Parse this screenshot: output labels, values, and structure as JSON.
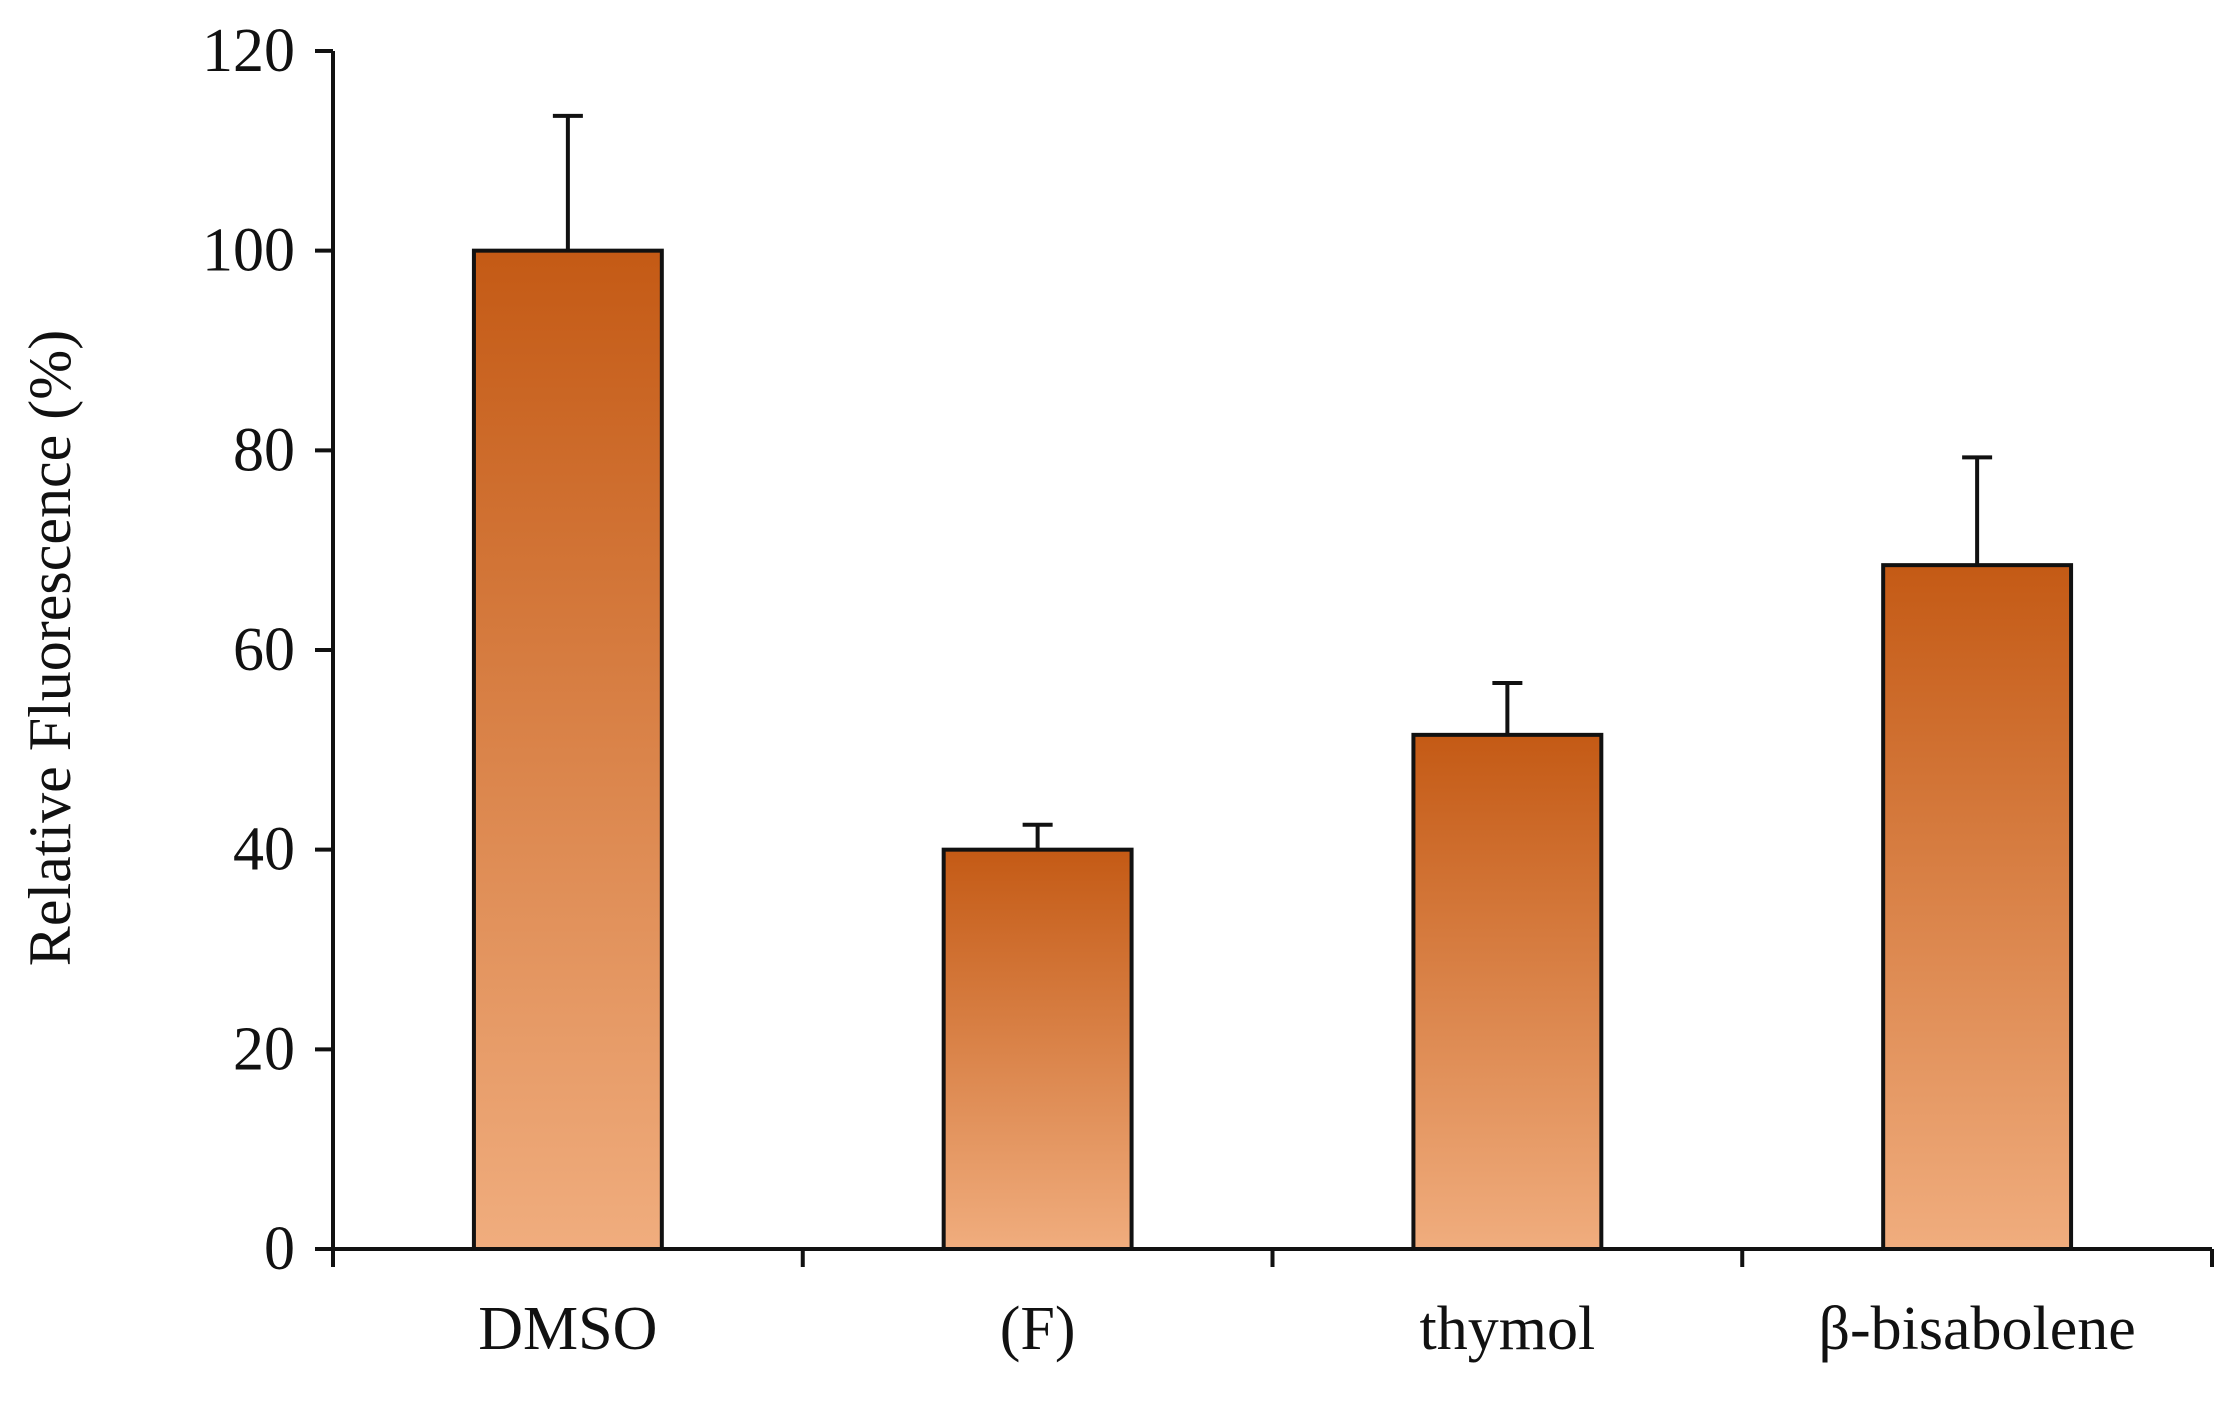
{
  "chart_data": {
    "type": "bar",
    "title": "",
    "xlabel": "",
    "ylabel": "Relative Fluorescence (%)",
    "categories": [
      "DMSO",
      "(F)",
      "thymol",
      "β-bisabolene"
    ],
    "values": [
      100,
      40,
      51.5,
      68.5
    ],
    "error_upper": [
      13.5,
      2.5,
      5.2,
      10.8
    ],
    "ylim": [
      0,
      120
    ],
    "yticks": [
      "0",
      "20",
      "40",
      "60",
      "80",
      "100",
      "120"
    ],
    "grid": false,
    "legend": "none",
    "colors": {
      "bar_top": "#c45a15",
      "bar_bottom": "#f0ad7e",
      "outline": "#111111"
    }
  }
}
